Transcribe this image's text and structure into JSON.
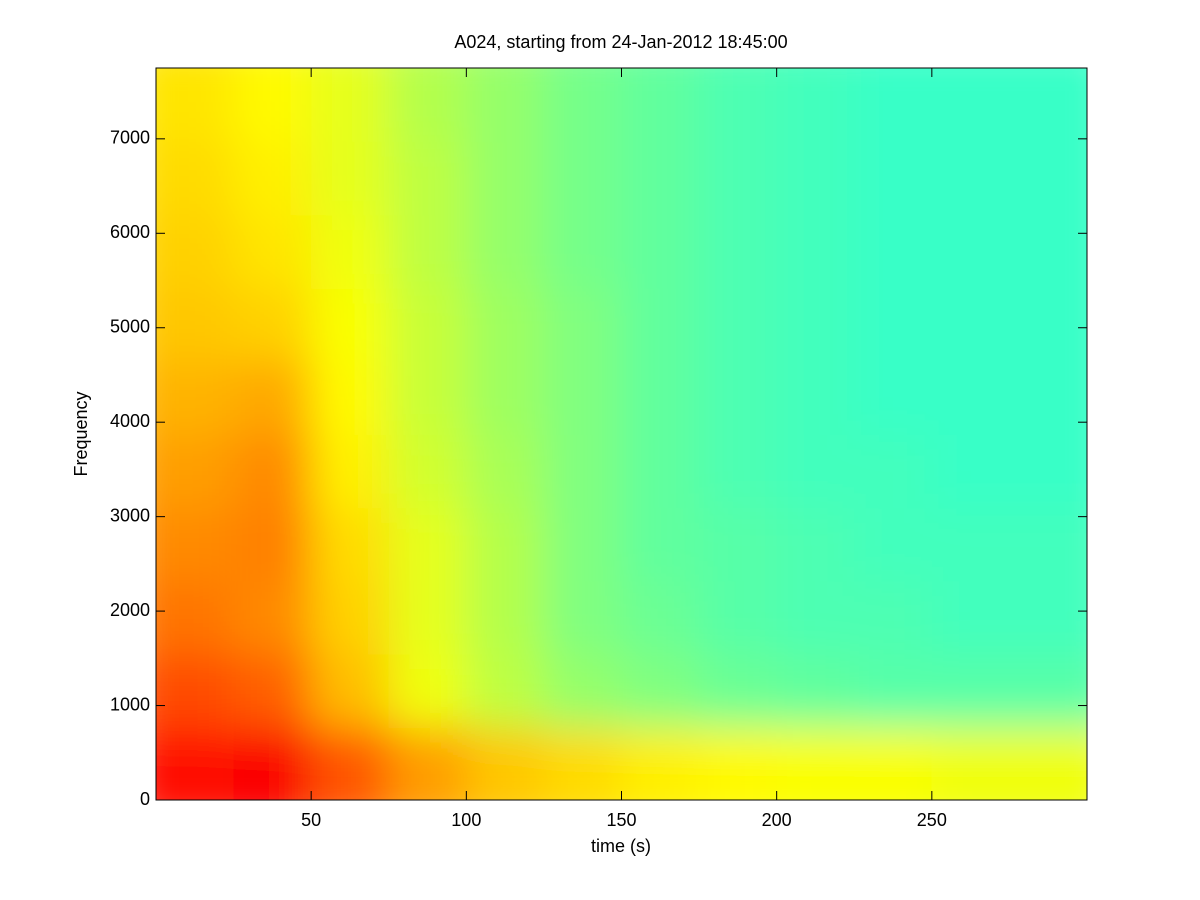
{
  "chart_data": {
    "type": "spectrogram",
    "title": "A024, starting from 24-Jan-2012 18:45:00",
    "x_label": "time (s)",
    "y_label": "Frequency",
    "xlim": [
      0,
      300
    ],
    "xticks": [
      50,
      100,
      150,
      200,
      250
    ],
    "ylim": [
      0,
      7750
    ],
    "yticks": [
      0,
      1000,
      2000,
      3000,
      4000,
      5000,
      6000,
      7000
    ],
    "colormap": "jet",
    "z": [
      [
        0.86,
        0.88,
        0.79,
        0.72,
        0.68,
        0.66,
        0.64,
        0.63,
        0.62,
        0.62,
        0.61,
        0.61
      ],
      [
        0.8,
        0.78,
        0.69,
        0.61,
        0.56,
        0.52,
        0.5,
        0.48,
        0.47,
        0.46,
        0.46,
        0.46
      ],
      [
        0.76,
        0.74,
        0.67,
        0.6,
        0.55,
        0.5,
        0.48,
        0.46,
        0.45,
        0.45,
        0.44,
        0.44
      ],
      [
        0.74,
        0.75,
        0.66,
        0.6,
        0.55,
        0.5,
        0.47,
        0.46,
        0.45,
        0.44,
        0.44,
        0.44
      ],
      [
        0.72,
        0.74,
        0.64,
        0.58,
        0.54,
        0.5,
        0.47,
        0.45,
        0.44,
        0.44,
        0.43,
        0.43
      ],
      [
        0.7,
        0.71,
        0.63,
        0.57,
        0.53,
        0.5,
        0.47,
        0.45,
        0.44,
        0.43,
        0.43,
        0.43
      ],
      [
        0.68,
        0.67,
        0.62,
        0.57,
        0.53,
        0.5,
        0.47,
        0.45,
        0.44,
        0.43,
        0.43,
        0.43
      ],
      [
        0.67,
        0.65,
        0.61,
        0.56,
        0.52,
        0.49,
        0.47,
        0.45,
        0.44,
        0.43,
        0.43,
        0.43
      ],
      [
        0.66,
        0.64,
        0.6,
        0.56,
        0.52,
        0.49,
        0.47,
        0.45,
        0.44,
        0.43,
        0.43,
        0.43
      ],
      [
        0.65,
        0.63,
        0.6,
        0.55,
        0.52,
        0.49,
        0.47,
        0.45,
        0.44,
        0.43,
        0.43,
        0.43
      ]
    ]
  }
}
